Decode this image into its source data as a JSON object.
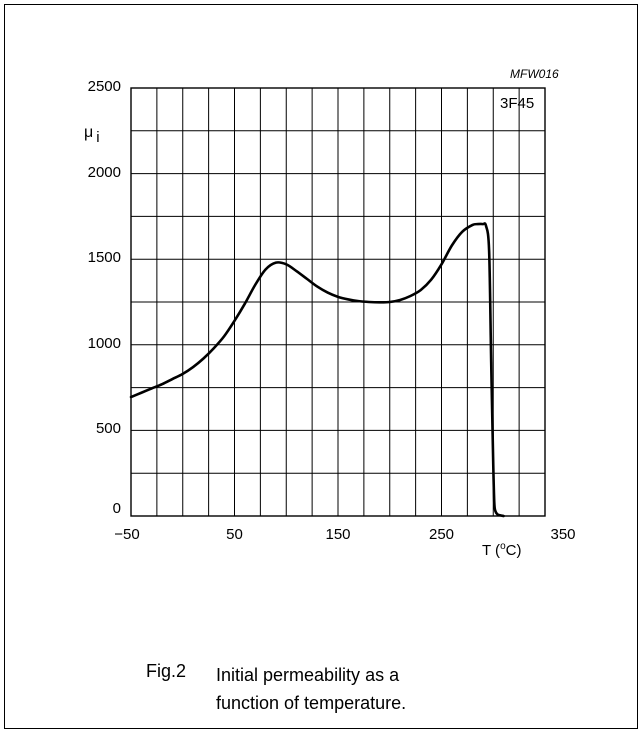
{
  "chart_data": {
    "type": "line",
    "id_code": "MFW016",
    "grade_label": "3F45",
    "ylabel_symbol": "μ",
    "ylabel_subscript": "i",
    "xlabel_prefix": "T (",
    "xlabel_degree": "o",
    "xlabel_suffix": "C)",
    "xlim": [
      -50,
      350
    ],
    "ylim": [
      0,
      2500
    ],
    "x_ticks": [
      -50,
      50,
      150,
      250,
      350
    ],
    "x_tick_labels": [
      "−50",
      "50",
      "150",
      "250",
      "350"
    ],
    "y_ticks": [
      0,
      500,
      1000,
      1500,
      2000,
      2500
    ],
    "y_tick_labels": [
      "0",
      "500",
      "1000",
      "1500",
      "2000",
      "2500"
    ],
    "grid": true,
    "x_grid_step": 25,
    "y_grid_step": 250,
    "series": [
      {
        "x": [
          -50,
          -40,
          -30,
          -20,
          -10,
          0,
          10,
          20,
          30,
          40,
          50,
          60,
          70,
          80,
          90,
          100,
          110,
          120,
          130,
          140,
          150,
          160,
          170,
          180,
          190,
          200,
          210,
          220,
          230,
          240,
          250,
          260,
          270,
          280,
          285,
          290,
          293,
          296,
          298,
          300,
          301,
          302,
          304,
          306,
          310
        ],
        "y": [
          695,
          720,
          745,
          770,
          800,
          830,
          870,
          920,
          980,
          1050,
          1140,
          1240,
          1350,
          1440,
          1480,
          1470,
          1430,
          1385,
          1340,
          1305,
          1280,
          1265,
          1255,
          1250,
          1248,
          1250,
          1262,
          1285,
          1320,
          1380,
          1470,
          1580,
          1660,
          1700,
          1705,
          1705,
          1695,
          1550,
          900,
          300,
          80,
          30,
          10,
          5,
          0
        ]
      }
    ]
  },
  "caption": {
    "figure_number": "Fig.2",
    "line1": "Initial permeability as a",
    "line2": "function of temperature."
  }
}
